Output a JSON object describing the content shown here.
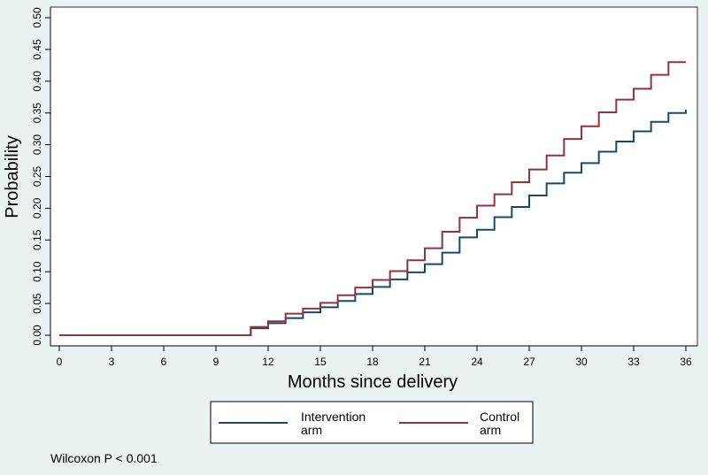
{
  "colors": {
    "background": "#eaf2f3",
    "plot_area": "#ffffff",
    "intervention": "#1a476f",
    "control": "#90353b"
  },
  "chart_data": {
    "type": "line",
    "step": true,
    "xlabel": "Months since delivery",
    "ylabel": "Probability",
    "xlim": [
      0,
      36
    ],
    "ylim": [
      0,
      0.5
    ],
    "xticks": [
      0,
      3,
      6,
      9,
      12,
      15,
      18,
      21,
      24,
      27,
      30,
      33,
      36
    ],
    "yticks": [
      "0.00",
      "0.05",
      "0.10",
      "0.15",
      "0.20",
      "0.25",
      "0.30",
      "0.35",
      "0.40",
      "0.45",
      "0.50"
    ],
    "grid": false,
    "legend_position": "bottom",
    "series": [
      {
        "name": "Intervention arm",
        "color": "#1a476f",
        "x": [
          0,
          11,
          12,
          13,
          14,
          15,
          16,
          17,
          18,
          19,
          20,
          21,
          22,
          23,
          24,
          25,
          26,
          27,
          28,
          29,
          30,
          31,
          32,
          33,
          34,
          35,
          36
        ],
        "y": [
          0,
          0.011,
          0.019,
          0.027,
          0.036,
          0.044,
          0.054,
          0.065,
          0.076,
          0.088,
          0.099,
          0.112,
          0.13,
          0.154,
          0.166,
          0.186,
          0.202,
          0.22,
          0.239,
          0.256,
          0.271,
          0.289,
          0.305,
          0.321,
          0.336,
          0.35,
          0.355
        ]
      },
      {
        "name": "Control arm",
        "color": "#90353b",
        "x": [
          0,
          11,
          12,
          13,
          14,
          15,
          16,
          17,
          18,
          19,
          20,
          21,
          22,
          23,
          24,
          25,
          26,
          27,
          28,
          29,
          30,
          31,
          32,
          33,
          34,
          35,
          36
        ],
        "y": [
          0,
          0.013,
          0.022,
          0.034,
          0.042,
          0.051,
          0.063,
          0.075,
          0.087,
          0.101,
          0.118,
          0.137,
          0.163,
          0.185,
          0.204,
          0.222,
          0.241,
          0.261,
          0.283,
          0.309,
          0.329,
          0.351,
          0.371,
          0.388,
          0.41,
          0.43,
          0.43
        ]
      }
    ]
  },
  "legend": {
    "intervention_line1": "Intervention",
    "intervention_line2": "arm",
    "control_line1": "Control",
    "control_line2": "arm"
  },
  "note": "Wilcoxon P < 0.001"
}
